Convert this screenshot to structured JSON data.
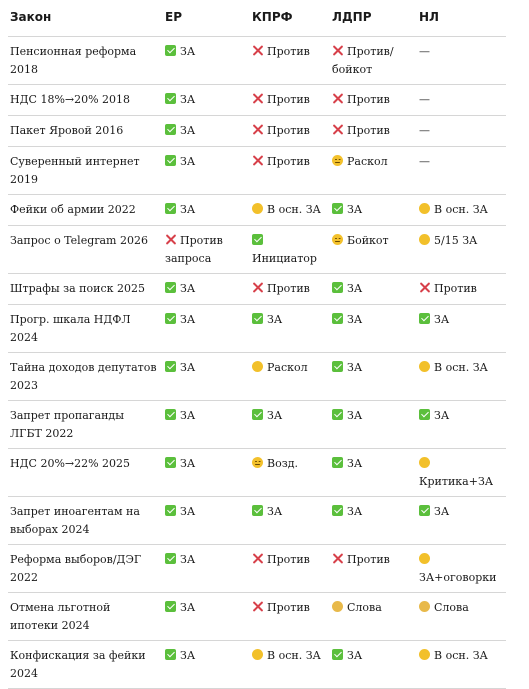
{
  "headers": [
    "Закон",
    "ЕР",
    "КПРФ",
    "ЛДПР",
    "НЛ"
  ],
  "rows": [
    {
      "law": "Пенсионная реформа 2018",
      "cells": [
        {
          "icon": "yes",
          "text": "ЗА"
        },
        {
          "icon": "no",
          "text": "Против"
        },
        {
          "icon": "no",
          "text": "Против/ бойкот"
        },
        {
          "icon": "none",
          "text": "—"
        }
      ]
    },
    {
      "law": "НДС 18%→20% 2018",
      "cells": [
        {
          "icon": "yes",
          "text": "ЗА"
        },
        {
          "icon": "no",
          "text": "Против"
        },
        {
          "icon": "no",
          "text": "Против"
        },
        {
          "icon": "none",
          "text": "—"
        }
      ]
    },
    {
      "law": "Пакет Яровой 2016",
      "cells": [
        {
          "icon": "yes",
          "text": "ЗА"
        },
        {
          "icon": "no",
          "text": "Против"
        },
        {
          "icon": "no",
          "text": "Против"
        },
        {
          "icon": "none",
          "text": "—"
        }
      ]
    },
    {
      "law": "Суверенный интернет 2019",
      "cells": [
        {
          "icon": "yes",
          "text": "ЗА"
        },
        {
          "icon": "no",
          "text": "Против"
        },
        {
          "icon": "face",
          "text": "Раскол"
        },
        {
          "icon": "none",
          "text": "—"
        }
      ]
    },
    {
      "law": "Фейки об армии 2022",
      "cells": [
        {
          "icon": "yes",
          "text": "ЗА"
        },
        {
          "icon": "partial",
          "text": "В осн. ЗА"
        },
        {
          "icon": "yes",
          "text": "ЗА"
        },
        {
          "icon": "partial",
          "text": "В осн. ЗА"
        }
      ]
    },
    {
      "law": "Запрос о Telegram 2026",
      "cells": [
        {
          "icon": "no",
          "text": "Против запроса"
        },
        {
          "icon": "yes",
          "text": "Инициатор"
        },
        {
          "icon": "face",
          "text": "Бойкот"
        },
        {
          "icon": "partial",
          "text": "5/15 ЗА"
        }
      ]
    },
    {
      "law": "Штрафы за поиск 2025",
      "cells": [
        {
          "icon": "yes",
          "text": "ЗА"
        },
        {
          "icon": "no",
          "text": "Против"
        },
        {
          "icon": "yes",
          "text": "ЗА"
        },
        {
          "icon": "no",
          "text": "Против"
        }
      ]
    },
    {
      "law": "Прогр. шкала НДФЛ 2024",
      "cells": [
        {
          "icon": "yes",
          "text": "ЗА"
        },
        {
          "icon": "yes",
          "text": "ЗА"
        },
        {
          "icon": "yes",
          "text": "ЗА"
        },
        {
          "icon": "yes",
          "text": "ЗА"
        }
      ]
    },
    {
      "law": "Тайна доходов депутатов 2023",
      "cells": [
        {
          "icon": "yes",
          "text": "ЗА"
        },
        {
          "icon": "partial",
          "text": "Раскол"
        },
        {
          "icon": "yes",
          "text": "ЗА"
        },
        {
          "icon": "partial",
          "text": "В осн. ЗА"
        }
      ]
    },
    {
      "law": "Запрет пропаганды ЛГБТ 2022",
      "cells": [
        {
          "icon": "yes",
          "text": "ЗА"
        },
        {
          "icon": "yes",
          "text": "ЗА"
        },
        {
          "icon": "yes",
          "text": "ЗА"
        },
        {
          "icon": "yes",
          "text": "ЗА"
        }
      ]
    },
    {
      "law": "НДС 20%→22% 2025",
      "cells": [
        {
          "icon": "yes",
          "text": "ЗА"
        },
        {
          "icon": "face",
          "text": "Возд."
        },
        {
          "icon": "yes",
          "text": "ЗА"
        },
        {
          "icon": "partial",
          "text": "Критика+ЗА"
        }
      ]
    },
    {
      "law": "Запрет иноагентам на выборах 2024",
      "cells": [
        {
          "icon": "yes",
          "text": "ЗА"
        },
        {
          "icon": "yes",
          "text": "ЗА"
        },
        {
          "icon": "yes",
          "text": "ЗА"
        },
        {
          "icon": "yes",
          "text": "ЗА"
        }
      ]
    },
    {
      "law": "Реформа выборов/ДЭГ 2022",
      "cells": [
        {
          "icon": "yes",
          "text": "ЗА"
        },
        {
          "icon": "no",
          "text": "Против"
        },
        {
          "icon": "no",
          "text": "Против"
        },
        {
          "icon": "partial",
          "text": "ЗА+оговорки"
        }
      ]
    },
    {
      "law": "Отмена льготной ипотеки 2024",
      "cells": [
        {
          "icon": "yes",
          "text": "ЗА"
        },
        {
          "icon": "no",
          "text": "Против"
        },
        {
          "icon": "neutral",
          "text": "Слова"
        },
        {
          "icon": "neutral",
          "text": "Слова"
        }
      ]
    },
    {
      "law": "Конфискация за фейки 2024",
      "cells": [
        {
          "icon": "yes",
          "text": "ЗА"
        },
        {
          "icon": "partial",
          "text": "В осн. ЗА"
        },
        {
          "icon": "yes",
          "text": "ЗА"
        },
        {
          "icon": "partial",
          "text": "В осн. ЗА"
        }
      ]
    }
  ]
}
